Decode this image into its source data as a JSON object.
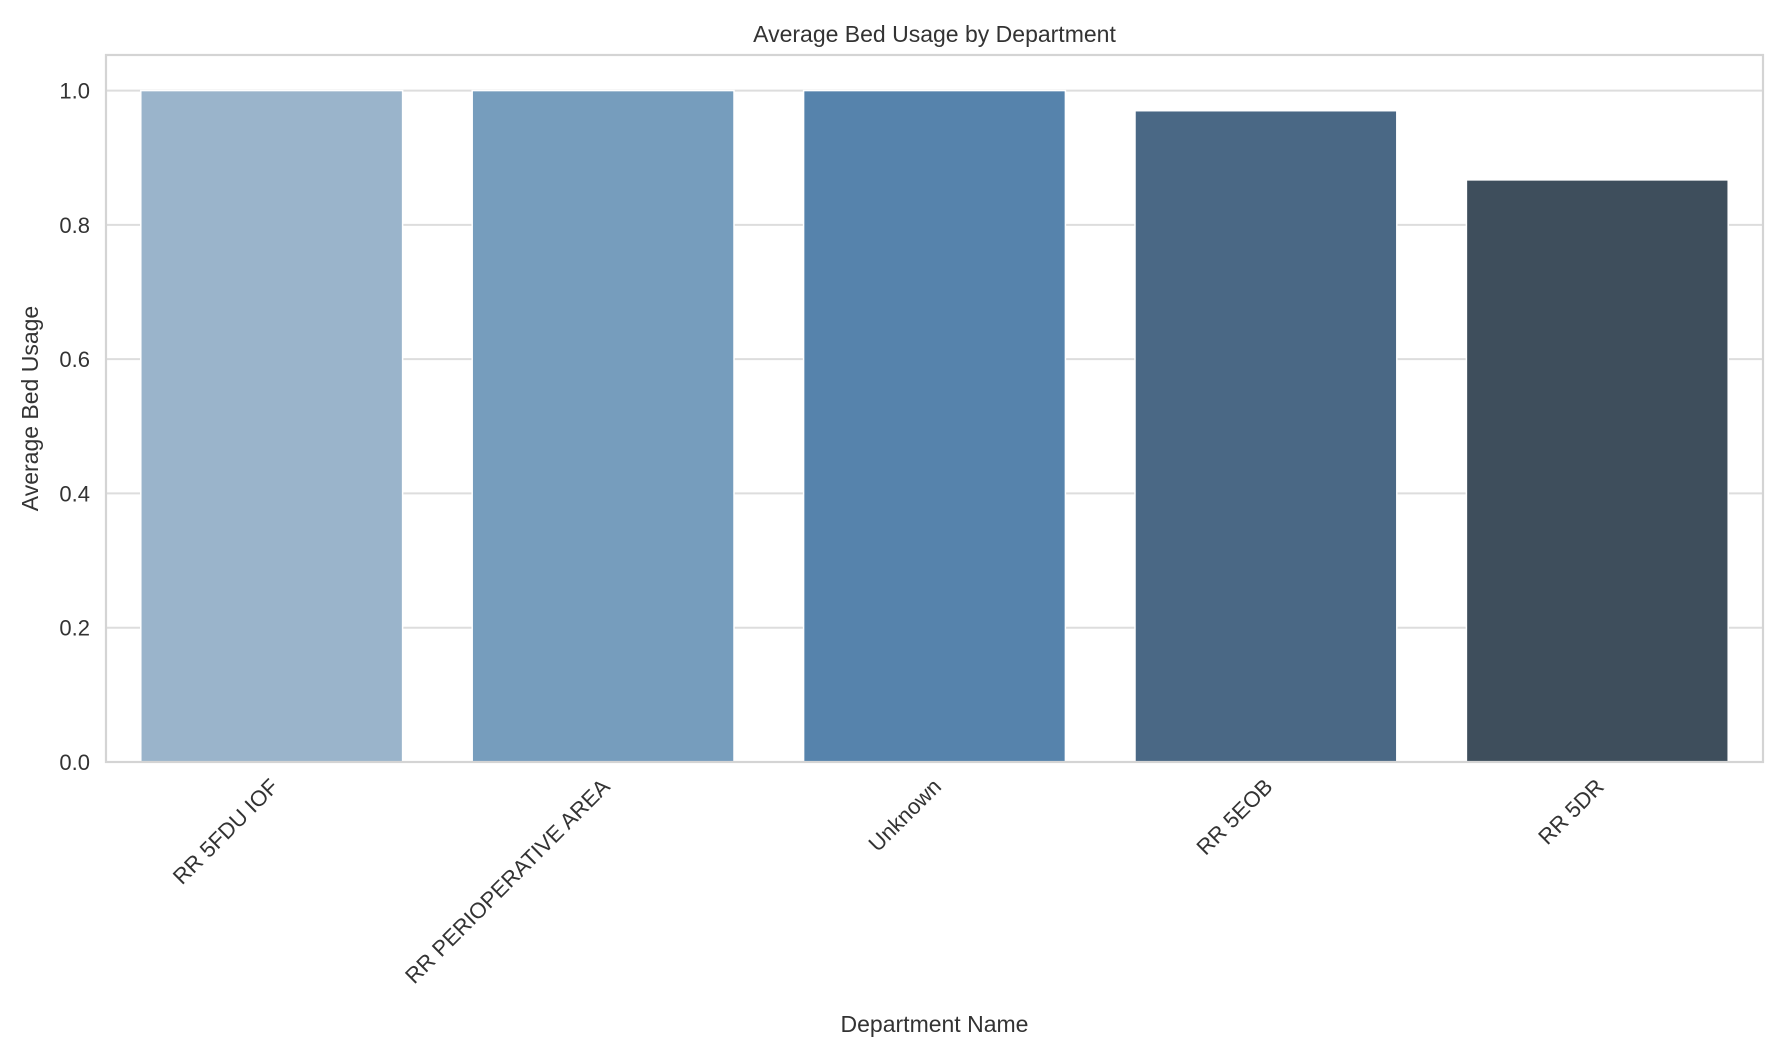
{
  "chart_data": {
    "type": "bar",
    "title": "Average Bed Usage by Department",
    "xlabel": "Department Name",
    "ylabel": "Average Bed Usage",
    "categories": [
      "RR 5FDU IOF",
      "RR PERIOPERATIVE AREA",
      "Unknown",
      "RR 5EOB",
      "RR 5DR"
    ],
    "values": [
      1.0,
      1.0,
      1.0,
      0.97,
      0.867
    ],
    "ylim": [
      0,
      1.053
    ],
    "yticks": [
      "0.0",
      "0.2",
      "0.4",
      "0.6",
      "0.8",
      "1.0"
    ],
    "grid": true,
    "legend": "none",
    "colors": [
      "#9ab4cb",
      "#769dbd",
      "#5683ac",
      "#4a6885",
      "#3e4e5c"
    ]
  }
}
